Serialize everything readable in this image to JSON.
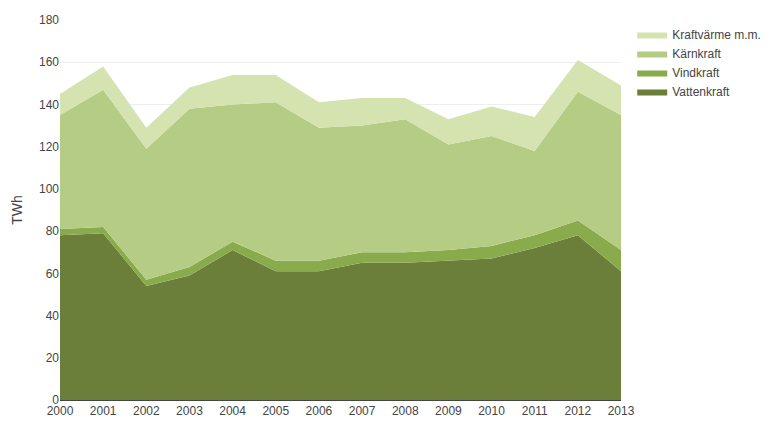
{
  "chart_data": {
    "type": "area",
    "stacked": true,
    "x": [
      2000,
      2001,
      2002,
      2003,
      2004,
      2005,
      2006,
      2007,
      2008,
      2009,
      2010,
      2011,
      2012,
      2013
    ],
    "series": [
      {
        "name": "Vattenkraft",
        "color": "#6b7f3a",
        "values": [
          78,
          79,
          54,
          59,
          71,
          61,
          61,
          65,
          65,
          66,
          67,
          72,
          78,
          61
        ]
      },
      {
        "name": "Vindkraft",
        "color": "#8aab4b",
        "values": [
          3,
          3,
          3,
          4,
          4,
          5,
          5,
          5,
          5,
          5,
          6,
          6,
          7,
          10
        ]
      },
      {
        "name": "Kärnkraft",
        "color": "#b5cc85",
        "values": [
          54,
          65,
          62,
          75,
          65,
          75,
          63,
          60,
          63,
          50,
          52,
          40,
          61,
          64
        ]
      },
      {
        "name": "Kraftvärme m.m.",
        "color": "#d4e3b0",
        "values": [
          10,
          11,
          10,
          10,
          14,
          13,
          12,
          13,
          10,
          12,
          14,
          16,
          15,
          14
        ]
      }
    ],
    "ylabel": "TWh",
    "xlim": [
      2000,
      2013
    ],
    "xticks": [
      2000,
      2001,
      2002,
      2003,
      2004,
      2005,
      2006,
      2007,
      2008,
      2009,
      2010,
      2011,
      2012,
      2013
    ],
    "ylim": [
      0,
      180
    ],
    "yticks": [
      0,
      20,
      40,
      60,
      80,
      100,
      120,
      140,
      160,
      180
    ],
    "grid": true,
    "legend": "right"
  }
}
